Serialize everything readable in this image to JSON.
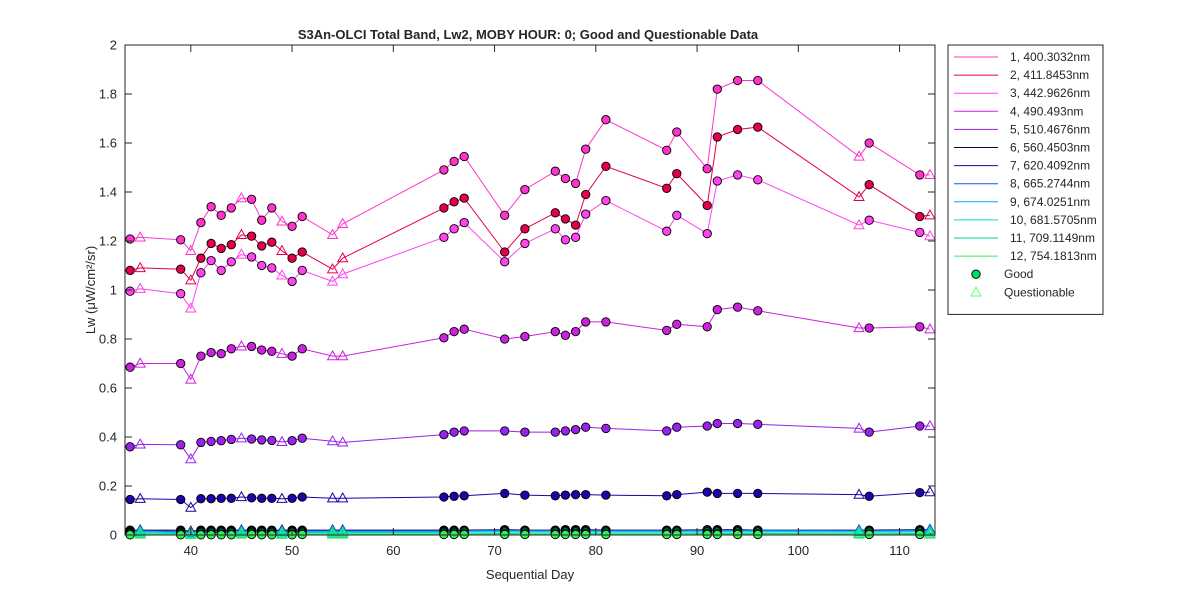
{
  "chart_data": {
    "type": "line",
    "title": "S3An-OLCI Total Band,  Lw2, MOBY HOUR: 0;  Good and Questionable Data",
    "xlabel": "Sequential Day",
    "ylabel": "Lw (μW/cm²/sr)",
    "xlim": [
      33.5,
      113.5
    ],
    "ylim": [
      0,
      2
    ],
    "xticks": [
      40,
      50,
      60,
      70,
      80,
      90,
      100,
      110
    ],
    "yticks": [
      0,
      0.2,
      0.4,
      0.6,
      0.8,
      1,
      1.2,
      1.4,
      1.6,
      1.8,
      2
    ],
    "ytick_labels": [
      "0",
      "0.2",
      "0.4",
      "0.6",
      "0.8",
      "1",
      "1.2",
      "1.4",
      "1.6",
      "1.8",
      "2"
    ],
    "grid": false,
    "legend_position": "outside-right-top",
    "x": [
      34,
      35,
      39,
      40,
      41,
      42,
      43,
      44,
      45,
      46,
      47,
      48,
      49,
      50,
      51,
      54,
      55,
      65,
      66,
      67,
      71,
      73,
      76,
      77,
      78,
      79,
      81,
      87,
      88,
      91,
      92,
      94,
      96,
      106,
      107,
      112,
      113
    ],
    "quality": [
      "G",
      "Q",
      "G",
      "Q",
      "G",
      "G",
      "G",
      "G",
      "Q",
      "G",
      "G",
      "G",
      "Q",
      "G",
      "G",
      "Q",
      "Q",
      "G",
      "G",
      "G",
      "G",
      "G",
      "G",
      "G",
      "G",
      "G",
      "G",
      "G",
      "G",
      "G",
      "G",
      "G",
      "G",
      "Q",
      "G",
      "G",
      "Q"
    ],
    "series": [
      {
        "name": "1, 400.3032nm",
        "color": "#ff33cc",
        "values": [
          1.208,
          1.215,
          1.205,
          1.16,
          1.275,
          1.34,
          1.305,
          1.335,
          1.375,
          1.37,
          1.285,
          1.335,
          1.28,
          1.26,
          1.3,
          1.225,
          1.27,
          1.49,
          1.525,
          1.545,
          1.305,
          1.41,
          1.485,
          1.455,
          1.435,
          1.575,
          1.695,
          1.57,
          1.645,
          1.495,
          1.82,
          1.855,
          1.855,
          1.545,
          1.6,
          1.47,
          1.47
        ]
      },
      {
        "name": "2, 411.8453nm",
        "color": "#e6004c",
        "values": [
          1.08,
          1.09,
          1.085,
          1.04,
          1.13,
          1.19,
          1.17,
          1.185,
          1.225,
          1.22,
          1.18,
          1.195,
          1.16,
          1.13,
          1.155,
          1.085,
          1.13,
          1.335,
          1.36,
          1.375,
          1.155,
          1.25,
          1.315,
          1.29,
          1.265,
          1.39,
          1.505,
          1.415,
          1.475,
          1.345,
          1.625,
          1.655,
          1.665,
          1.38,
          1.43,
          1.3,
          1.305
        ]
      },
      {
        "name": "3, 442.9626nm",
        "color": "#ff44ee",
        "values": [
          0.995,
          1.005,
          0.985,
          0.925,
          1.07,
          1.12,
          1.08,
          1.115,
          1.145,
          1.135,
          1.1,
          1.09,
          1.06,
          1.035,
          1.08,
          1.035,
          1.065,
          1.215,
          1.25,
          1.275,
          1.115,
          1.19,
          1.25,
          1.205,
          1.215,
          1.31,
          1.365,
          1.24,
          1.305,
          1.23,
          1.445,
          1.47,
          1.45,
          1.265,
          1.285,
          1.235,
          1.22
        ]
      },
      {
        "name": "4,  490.493nm",
        "color": "#cc22dd",
        "values": [
          0.685,
          0.7,
          0.7,
          0.635,
          0.73,
          0.745,
          0.74,
          0.76,
          0.77,
          0.77,
          0.755,
          0.75,
          0.74,
          0.73,
          0.76,
          0.73,
          0.73,
          0.805,
          0.83,
          0.84,
          0.8,
          0.81,
          0.83,
          0.815,
          0.83,
          0.87,
          0.87,
          0.835,
          0.86,
          0.85,
          0.92,
          0.93,
          0.915,
          0.845,
          0.845,
          0.85,
          0.84
        ]
      },
      {
        "name": "5, 510.4676nm",
        "color": "#9922ee",
        "values": [
          0.36,
          0.37,
          0.368,
          0.31,
          0.378,
          0.382,
          0.385,
          0.39,
          0.395,
          0.392,
          0.388,
          0.386,
          0.38,
          0.385,
          0.395,
          0.383,
          0.378,
          0.41,
          0.42,
          0.425,
          0.425,
          0.42,
          0.42,
          0.425,
          0.43,
          0.44,
          0.435,
          0.425,
          0.44,
          0.445,
          0.455,
          0.455,
          0.452,
          0.435,
          0.42,
          0.445,
          0.445
        ]
      },
      {
        "name": "6, 560.4503nm",
        "color": "#220033",
        "values": [
          0.02,
          0.02,
          0.02,
          0.015,
          0.02,
          0.02,
          0.02,
          0.02,
          0.02,
          0.02,
          0.02,
          0.02,
          0.02,
          0.02,
          0.02,
          0.02,
          0.02,
          0.02,
          0.02,
          0.02,
          0.022,
          0.02,
          0.02,
          0.022,
          0.022,
          0.022,
          0.02,
          0.02,
          0.02,
          0.022,
          0.022,
          0.022,
          0.02,
          0.02,
          0.02,
          0.022,
          0.022
        ]
      },
      {
        "name": "7, 620.4092nm",
        "color": "#2200aa",
        "values": [
          0.145,
          0.148,
          0.145,
          0.112,
          0.148,
          0.148,
          0.15,
          0.15,
          0.155,
          0.152,
          0.15,
          0.15,
          0.148,
          0.15,
          0.155,
          0.15,
          0.15,
          0.155,
          0.158,
          0.16,
          0.17,
          0.163,
          0.16,
          0.163,
          0.165,
          0.165,
          0.163,
          0.16,
          0.165,
          0.175,
          0.17,
          0.17,
          0.17,
          0.165,
          0.158,
          0.173,
          0.175
        ]
      },
      {
        "name": "8, 665.2744nm",
        "color": "#1155ee",
        "values": [
          0.015,
          0.018,
          0.015,
          0.01,
          0.016,
          0.016,
          0.016,
          0.016,
          0.017,
          0.017,
          0.016,
          0.016,
          0.016,
          0.016,
          0.017,
          0.017,
          0.017,
          0.017,
          0.017,
          0.018,
          0.02,
          0.018,
          0.018,
          0.019,
          0.019,
          0.019,
          0.018,
          0.018,
          0.018,
          0.02,
          0.02,
          0.019,
          0.019,
          0.018,
          0.018,
          0.02,
          0.02
        ]
      },
      {
        "name": "9, 674.0251nm",
        "color": "#00aaee",
        "values": [
          0.012,
          0.014,
          0.012,
          0.008,
          0.013,
          0.013,
          0.013,
          0.013,
          0.014,
          0.014,
          0.013,
          0.013,
          0.013,
          0.013,
          0.014,
          0.014,
          0.014,
          0.014,
          0.014,
          0.015,
          0.016,
          0.015,
          0.015,
          0.016,
          0.016,
          0.016,
          0.015,
          0.015,
          0.015,
          0.016,
          0.016,
          0.016,
          0.016,
          0.015,
          0.015,
          0.016,
          0.016
        ]
      },
      {
        "name": "10, 681.5705nm",
        "color": "#00ddcc",
        "values": [
          0.008,
          0.01,
          0.008,
          0.005,
          0.009,
          0.009,
          0.009,
          0.009,
          0.01,
          0.01,
          0.009,
          0.009,
          0.009,
          0.009,
          0.01,
          0.01,
          0.01,
          0.01,
          0.01,
          0.011,
          0.012,
          0.011,
          0.011,
          0.012,
          0.012,
          0.012,
          0.011,
          0.011,
          0.011,
          0.012,
          0.012,
          0.012,
          0.012,
          0.011,
          0.011,
          0.012,
          0.012
        ]
      },
      {
        "name": "11, 709.1149nm",
        "color": "#00dd88",
        "values": [
          0.004,
          0.005,
          0.004,
          0.002,
          0.004,
          0.004,
          0.004,
          0.004,
          0.005,
          0.005,
          0.004,
          0.004,
          0.004,
          0.004,
          0.005,
          0.005,
          0.005,
          0.005,
          0.005,
          0.005,
          0.006,
          0.005,
          0.005,
          0.006,
          0.006,
          0.006,
          0.005,
          0.005,
          0.005,
          0.006,
          0.006,
          0.006,
          0.006,
          0.005,
          0.005,
          0.006,
          0.006
        ]
      },
      {
        "name": "12, 754.1813nm",
        "color": "#33ee55",
        "values": [
          0.001,
          0.002,
          0.001,
          0.0,
          0.001,
          0.001,
          0.001,
          0.001,
          0.002,
          0.002,
          0.001,
          0.001,
          0.001,
          0.001,
          0.002,
          0.002,
          0.002,
          0.002,
          0.002,
          0.002,
          0.002,
          0.002,
          0.002,
          0.002,
          0.002,
          0.002,
          0.002,
          0.002,
          0.002,
          0.002,
          0.002,
          0.002,
          0.002,
          0.002,
          0.002,
          0.002,
          0.002
        ]
      }
    ],
    "marker_legend": [
      {
        "label": "Good",
        "marker": "circle",
        "color": "#00dd66"
      },
      {
        "label": "Questionable",
        "marker": "triangle",
        "color": "#66ff66"
      }
    ]
  }
}
